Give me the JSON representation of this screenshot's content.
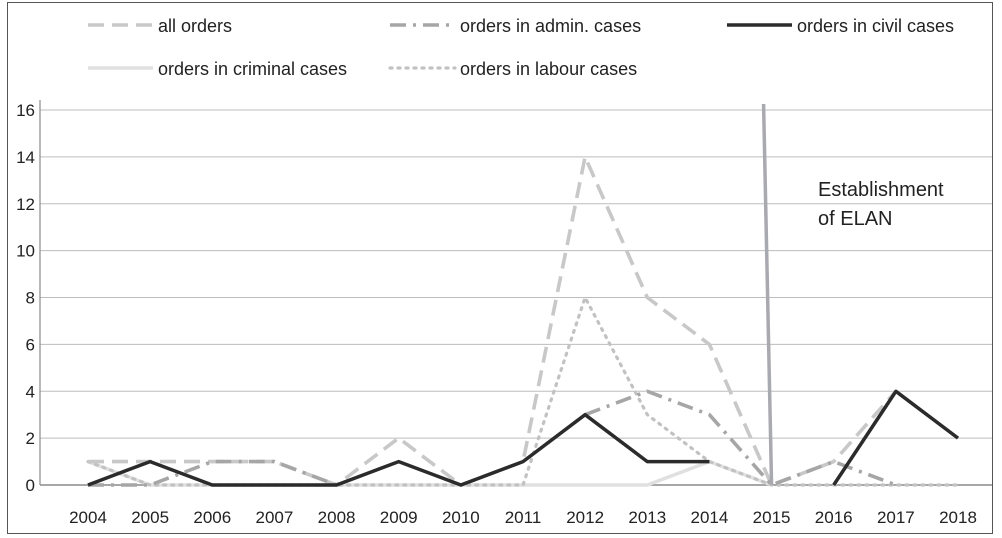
{
  "chart_data": {
    "type": "line",
    "title": "",
    "xlabel": "",
    "ylabel": "",
    "categories": [
      "2004",
      "2005",
      "2006",
      "2007",
      "2008",
      "2009",
      "2010",
      "2011",
      "2012",
      "2013",
      "2014",
      "2015",
      "2016",
      "2017",
      "2018"
    ],
    "ylim": [
      0,
      16
    ],
    "yticks": [
      0,
      2,
      4,
      6,
      8,
      10,
      12,
      14,
      16
    ],
    "grid": true,
    "legend_position": "top",
    "series": [
      {
        "name": "all orders",
        "style": "dashed",
        "color": "#c8c8c8",
        "values": [
          1,
          1,
          1,
          1,
          0,
          2,
          0,
          1,
          14,
          8,
          6,
          0,
          1,
          4,
          null
        ]
      },
      {
        "name": "orders in admin. cases",
        "style": "dashdot",
        "color": "#a6a6a6",
        "values": [
          0,
          0,
          1,
          1,
          0,
          null,
          null,
          null,
          3,
          4,
          3,
          0,
          1,
          0,
          null
        ]
      },
      {
        "name": "orders in civil cases",
        "style": "solid",
        "color": "#2b2b2b",
        "values": [
          0,
          1,
          0,
          0,
          0,
          1,
          0,
          1,
          3,
          1,
          1,
          null,
          0,
          4,
          2
        ]
      },
      {
        "name": "orders in criminal cases",
        "style": "solid",
        "color": "#e0e0e0",
        "values": [
          1,
          0,
          0,
          0,
          0,
          0,
          0,
          0,
          0,
          0,
          1,
          0,
          null,
          null,
          null
        ]
      },
      {
        "name": "orders in labour cases",
        "style": "dotted",
        "color": "#c2c2c2",
        "values": [
          1,
          0,
          0,
          0,
          0,
          0,
          0,
          0,
          8,
          3,
          1,
          0,
          0,
          0,
          0
        ]
      }
    ],
    "marker": {
      "x": "2015",
      "color": "#a9a9b0"
    },
    "annotation": {
      "line1": "Establishment",
      "line2": "of ELAN"
    }
  }
}
